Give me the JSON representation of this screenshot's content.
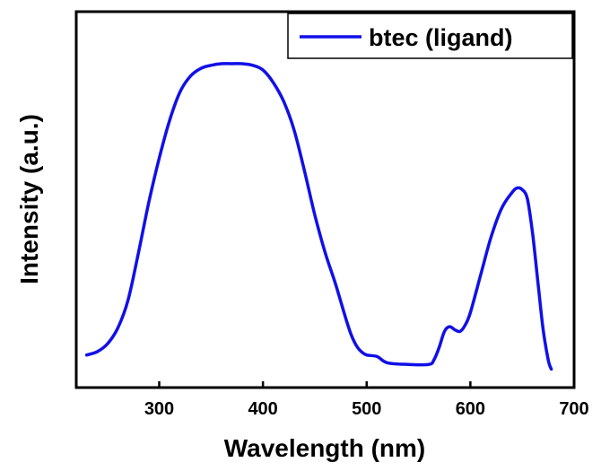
{
  "chart_data": {
    "type": "line",
    "title": "",
    "xlabel": "Wavelength (nm)",
    "ylabel": "Intensity (a.u.)",
    "xlim": [
      220,
      700
    ],
    "ylim": [
      0,
      1
    ],
    "x_ticks": [
      300,
      400,
      500,
      600,
      700
    ],
    "y_ticks_shown": false,
    "grid": false,
    "legend_position": "top-right",
    "series_color": "#1010e8",
    "series": [
      {
        "name": "btec (ligand)",
        "x": [
          230,
          240,
          250,
          260,
          270,
          280,
          290,
          300,
          310,
          320,
          330,
          340,
          350,
          360,
          370,
          380,
          390,
          400,
          410,
          420,
          430,
          440,
          450,
          460,
          470,
          480,
          485,
          490,
          495,
          500,
          510,
          520,
          540,
          560,
          565,
          570,
          575,
          580,
          585,
          590,
          595,
          600,
          610,
          620,
          630,
          640,
          645,
          650,
          655,
          660,
          665,
          670,
          675,
          678
        ],
        "y": [
          0.075,
          0.085,
          0.11,
          0.16,
          0.25,
          0.4,
          0.56,
          0.7,
          0.82,
          0.91,
          0.96,
          0.985,
          0.995,
          1.0,
          1.0,
          1.0,
          0.995,
          0.98,
          0.94,
          0.88,
          0.79,
          0.66,
          0.52,
          0.4,
          0.3,
          0.19,
          0.14,
          0.105,
          0.085,
          0.075,
          0.07,
          0.05,
          0.045,
          0.045,
          0.06,
          0.1,
          0.15,
          0.165,
          0.155,
          0.15,
          0.17,
          0.21,
          0.33,
          0.45,
          0.54,
          0.59,
          0.605,
          0.6,
          0.57,
          0.46,
          0.31,
          0.16,
          0.06,
          0.03
        ]
      }
    ]
  }
}
